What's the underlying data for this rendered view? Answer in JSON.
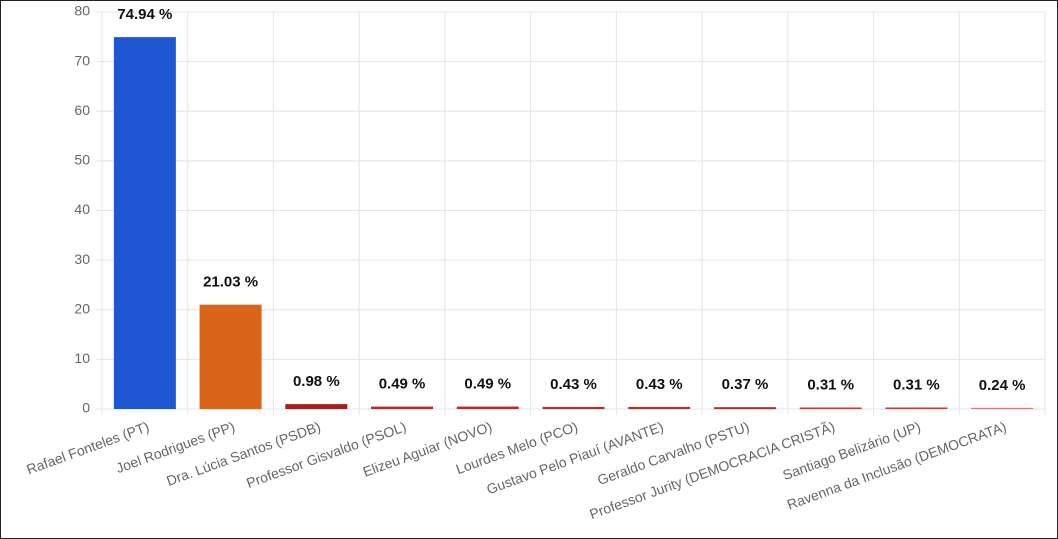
{
  "chart_data": {
    "type": "bar",
    "categories": [
      "Rafael Fonteles (PT)",
      "Joel Rodrigues (PP)",
      "Dra. Lúcia Santos (PSDB)",
      "Professor Gisvaldo (PSOL)",
      "Elizeu Aguiar (NOVO)",
      "Lourdes Melo (PCO)",
      "Gustavo Pelo Piauí (AVANTE)",
      "Geraldo Carvalho (PSTU)",
      "Professor Jurity (DEMOCRACIA CRISTÃ)",
      "Santiago Belizário (UP)",
      "Ravenna da Inclusão (DEMOCRATA)"
    ],
    "values": [
      74.94,
      21.03,
      0.98,
      0.49,
      0.49,
      0.43,
      0.43,
      0.37,
      0.31,
      0.31,
      0.24
    ],
    "value_labels": [
      "74.94 %",
      "21.03 %",
      "0.98 %",
      "0.49 %",
      "0.49 %",
      "0.43 %",
      "0.43 %",
      "0.37 %",
      "0.31 %",
      "0.31 %",
      "0.24 %"
    ],
    "colors": [
      "#1f56d1",
      "#d9651a",
      "#a51d1d",
      "#c62828",
      "#c62828",
      "#c62828",
      "#c62828",
      "#c62828",
      "#d23a3a",
      "#d23a3a",
      "#e57373"
    ],
    "ylim": [
      0,
      80
    ],
    "yticks": [
      0,
      10,
      20,
      30,
      40,
      50,
      60,
      70,
      80
    ],
    "grid": true
  }
}
